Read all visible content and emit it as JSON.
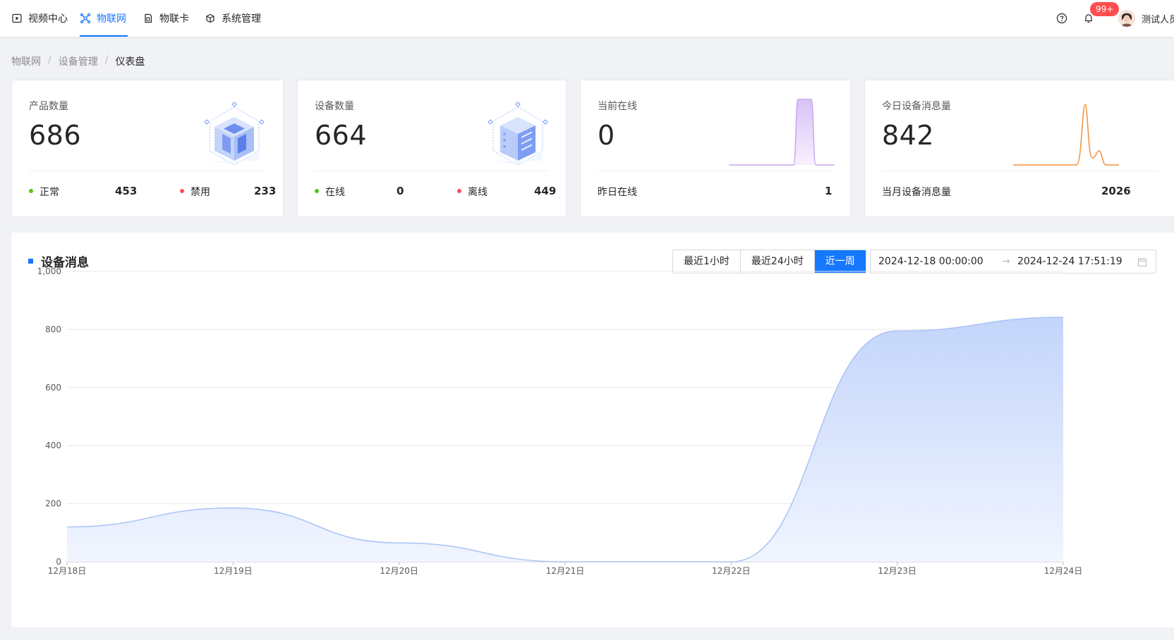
{
  "nav": {
    "items": [
      {
        "label": "视频中心",
        "icon": "video-play-icon"
      },
      {
        "label": "物联网",
        "icon": "iot-network-icon",
        "active": true
      },
      {
        "label": "物联卡",
        "icon": "sim-card-icon"
      },
      {
        "label": "系统管理",
        "icon": "system-cube-icon"
      }
    ],
    "notification_badge": "99+",
    "username": "测试人员"
  },
  "breadcrumb": [
    "物联网",
    "设备管理",
    "仪表盘"
  ],
  "breadcrumb_sep": "/",
  "cards": {
    "products": {
      "title": "产品数量",
      "value": "686",
      "s1_label": "正常",
      "s1_value": "453",
      "s2_label": "禁用",
      "s2_value": "233"
    },
    "devices": {
      "title": "设备数量",
      "value": "664",
      "s1_label": "在线",
      "s1_value": "0",
      "s2_label": "离线",
      "s2_value": "449"
    },
    "online": {
      "title": "当前在线",
      "value": "0",
      "foot_label": "昨日在线",
      "foot_value": "1"
    },
    "messages": {
      "title": "今日设备消息量",
      "value": "842",
      "foot_label": "当月设备消息量",
      "foot_value": "2026"
    }
  },
  "colors": {
    "accent": "#1677ff",
    "ok": "#52c41a",
    "danger": "#ff4d4f",
    "purple": "#c9a6f0",
    "orange": "#f5903d"
  },
  "panel": {
    "title": "设备消息",
    "ranges": [
      "最近1小时",
      "最近24小时",
      "近一周"
    ],
    "active_range": "近一周",
    "start": "2024-12-18 00:00:00",
    "end": "2024-12-24 17:51:19"
  },
  "chart_data": {
    "type": "area",
    "categories": [
      "12月18日",
      "12月19日",
      "12月20日",
      "12月21日",
      "12月22日",
      "12月23日",
      "12月24日"
    ],
    "values": [
      120,
      185,
      65,
      0,
      0,
      795,
      842
    ],
    "yticks": [
      "0",
      "200",
      "400",
      "600",
      "800",
      "1,000"
    ],
    "ylim": [
      0,
      1000
    ],
    "grid": true
  }
}
